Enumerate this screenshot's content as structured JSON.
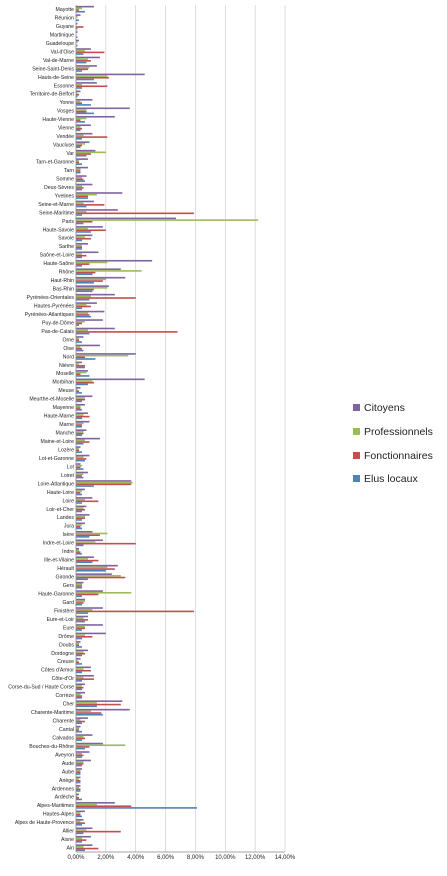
{
  "chart_data": {
    "type": "bar",
    "orientation": "horizontal",
    "title": "",
    "xlabel": "",
    "ylabel": "",
    "xlim": [
      0,
      0.14
    ],
    "xticks": [
      "0,00%",
      "2,00%",
      "4,00%",
      "6,00%",
      "8,00%",
      "10,00%",
      "12,00%",
      "14,00%"
    ],
    "grid": "vertical",
    "legend_position": "right",
    "categories": [
      "Mayotte",
      "Réunion",
      "Guyane",
      "Martinique",
      "Guadeloupe",
      "Val-d'Oise",
      "Val-de-Marne",
      "Seine-Saint-Denis",
      "Hauts-de-Seine",
      "Essonne",
      "Territoire-de-Belfort",
      "Yonne",
      "Vosges",
      "Haute-Vienne",
      "Vienne",
      "Vendée",
      "Vaucluse",
      "Var",
      "Tarn-et-Garonne",
      "Tarn",
      "Somme",
      "Deux-Sèvres",
      "Yvelines",
      "Seine-et-Marne",
      "Seine-Maritime",
      "Paris",
      "Haute-Savoie",
      "Savoie",
      "Sarthe",
      "Saône-et-Loire",
      "Haute-Saône",
      "Rhône",
      "Haut-Rhin",
      "Bas-Rhin",
      "Pyrénées-Orientales",
      "Hautes-Pyrénées",
      "Pyrénées-Atlantiques",
      "Puy-de-Dôme",
      "Pas-de-Calais",
      "Orne",
      "Oise",
      "Nord",
      "Nièvre",
      "Moselle",
      "Morbihan",
      "Meuse",
      "Meurthe-et-Moselle",
      "Mayenne",
      "Haute-Marne",
      "Marne",
      "Manche",
      "Maine-et-Loire",
      "Lozère",
      "Lot-et-Garonne",
      "Lot",
      "Loiret",
      "Loire-Atlantique",
      "Haute-Loire",
      "Loire",
      "Loir-et-Cher",
      "Landes",
      "Jura",
      "Isère",
      "Indre-et-Loire",
      "Indre",
      "Ille-et-Vilaine",
      "Hérault",
      "Gironde",
      "Gers",
      "Haute-Garonne",
      "Gard",
      "Finistère",
      "Eure-et-Loir",
      "Eure",
      "Drôme",
      "Doubs",
      "Dordogne",
      "Creuse",
      "Côtes d'Armor",
      "Côte-d'Or",
      "Corse-du-Sud / Haute Corse",
      "Corrèze",
      "Cher",
      "Charente-Maritime",
      "Charente",
      "Cantal",
      "Calvados",
      "Bouches-du-Rhône",
      "Aveyron",
      "Aude",
      "Aube",
      "Ariège",
      "Ardennes",
      "Ardèche",
      "Alpes-Maritimes",
      "Hautes-Alpes",
      "Alpes de Haute-Provence",
      "Allier",
      "Aisne",
      "Ain"
    ],
    "series": [
      {
        "name": "Citoyens",
        "color": "#8064a2",
        "values": [
          0.012,
          0.003,
          0.001,
          0.001,
          0.002,
          0.01,
          0.016,
          0.014,
          0.046,
          0.014,
          0.003,
          0.011,
          0.036,
          0.026,
          0.01,
          0.011,
          0.009,
          0.013,
          0.008,
          0.008,
          0.007,
          0.011,
          0.031,
          0.012,
          0.028,
          0.067,
          0.018,
          0.011,
          0.008,
          0.015,
          0.051,
          0.03,
          0.033,
          0.022,
          0.026,
          0.014,
          0.019,
          0.018,
          0.026,
          0.005,
          0.016,
          0.04,
          0.004,
          0.008,
          0.046,
          0.003,
          0.011,
          0.006,
          0.008,
          0.009,
          0.007,
          0.016,
          0.003,
          0.009,
          0.003,
          0.008,
          0.037,
          0.006,
          0.011,
          0.007,
          0.009,
          0.006,
          0.011,
          0.018,
          0.002,
          0.012,
          0.028,
          0.024,
          0.005,
          0.018,
          0.006,
          0.018,
          0.008,
          0.018,
          0.02,
          0.003,
          0.008,
          0.003,
          0.01,
          0.012,
          0.006,
          0.006,
          0.031,
          0.036,
          0.008,
          0.003,
          0.011,
          0.018,
          0.009,
          0.01,
          0.004,
          0.003,
          0.003,
          0.002,
          0.026,
          0.006,
          0.005,
          0.011,
          0.01,
          0.011
        ]
      },
      {
        "name": "Professionnels",
        "color": "#9bbb59",
        "values": [
          0.004,
          0.001,
          0.0,
          0.0,
          0.001,
          0.006,
          0.008,
          0.009,
          0.021,
          0.004,
          0.001,
          0.003,
          0.007,
          0.007,
          0.003,
          0.005,
          0.006,
          0.02,
          0.002,
          0.003,
          0.004,
          0.004,
          0.014,
          0.005,
          0.007,
          0.122,
          0.008,
          0.006,
          0.004,
          0.004,
          0.021,
          0.044,
          0.02,
          0.021,
          0.01,
          0.007,
          0.008,
          0.006,
          0.008,
          0.002,
          0.003,
          0.035,
          0.002,
          0.007,
          0.011,
          0.001,
          0.006,
          0.003,
          0.005,
          0.005,
          0.005,
          0.006,
          0.002,
          0.005,
          0.004,
          0.005,
          0.038,
          0.004,
          0.006,
          0.005,
          0.006,
          0.004,
          0.021,
          0.013,
          0.002,
          0.008,
          0.021,
          0.03,
          0.004,
          0.037,
          0.006,
          0.011,
          0.005,
          0.006,
          0.006,
          0.002,
          0.005,
          0.001,
          0.005,
          0.005,
          0.004,
          0.003,
          0.014,
          0.01,
          0.003,
          0.002,
          0.005,
          0.033,
          0.004,
          0.005,
          0.003,
          0.002,
          0.002,
          0.001,
          0.014,
          0.003,
          0.003,
          0.007,
          0.004,
          0.005
        ]
      },
      {
        "name": "Fonctionnaires",
        "color": "#c0504d",
        "values": [
          0.002,
          0.0,
          0.005,
          0.0,
          0.0,
          0.019,
          0.01,
          0.008,
          0.022,
          0.021,
          0.002,
          0.004,
          0.007,
          0.003,
          0.004,
          0.021,
          0.004,
          0.01,
          0.002,
          0.003,
          0.005,
          0.005,
          0.008,
          0.019,
          0.079,
          0.011,
          0.02,
          0.01,
          0.004,
          0.007,
          0.009,
          0.013,
          0.018,
          0.012,
          0.04,
          0.01,
          0.009,
          0.004,
          0.068,
          0.002,
          0.004,
          0.006,
          0.006,
          0.003,
          0.012,
          0.002,
          0.006,
          0.003,
          0.009,
          0.004,
          0.005,
          0.009,
          0.002,
          0.007,
          0.003,
          0.004,
          0.037,
          0.003,
          0.015,
          0.006,
          0.006,
          0.003,
          0.016,
          0.04,
          0.003,
          0.015,
          0.026,
          0.033,
          0.004,
          0.015,
          0.005,
          0.079,
          0.008,
          0.006,
          0.011,
          0.002,
          0.006,
          0.002,
          0.01,
          0.012,
          0.005,
          0.004,
          0.03,
          0.017,
          0.006,
          0.002,
          0.006,
          0.009,
          0.005,
          0.005,
          0.003,
          0.003,
          0.003,
          0.002,
          0.037,
          0.003,
          0.006,
          0.03,
          0.007,
          0.015
        ]
      },
      {
        "name": "Elus locaux",
        "color": "#4f81bd",
        "values": [
          0.006,
          0.002,
          0.001,
          0.001,
          0.001,
          0.005,
          0.007,
          0.004,
          0.012,
          0.004,
          0.001,
          0.01,
          0.012,
          0.006,
          0.003,
          0.004,
          0.003,
          0.007,
          0.004,
          0.003,
          0.006,
          0.004,
          0.008,
          0.007,
          0.004,
          0.005,
          0.01,
          0.004,
          0.004,
          0.004,
          0.004,
          0.011,
          0.012,
          0.011,
          0.009,
          0.004,
          0.01,
          0.002,
          0.009,
          0.004,
          0.005,
          0.013,
          0.006,
          0.009,
          0.008,
          0.004,
          0.004,
          0.004,
          0.004,
          0.004,
          0.004,
          0.005,
          0.004,
          0.006,
          0.005,
          0.005,
          0.012,
          0.004,
          0.004,
          0.004,
          0.004,
          0.004,
          0.009,
          0.005,
          0.004,
          0.011,
          0.02,
          0.008,
          0.004,
          0.004,
          0.004,
          0.008,
          0.006,
          0.004,
          0.004,
          0.004,
          0.004,
          0.004,
          0.004,
          0.004,
          0.004,
          0.004,
          0.014,
          0.018,
          0.004,
          0.004,
          0.004,
          0.006,
          0.004,
          0.004,
          0.003,
          0.003,
          0.003,
          0.004,
          0.081,
          0.004,
          0.004,
          0.005,
          0.004,
          0.006
        ]
      }
    ]
  }
}
